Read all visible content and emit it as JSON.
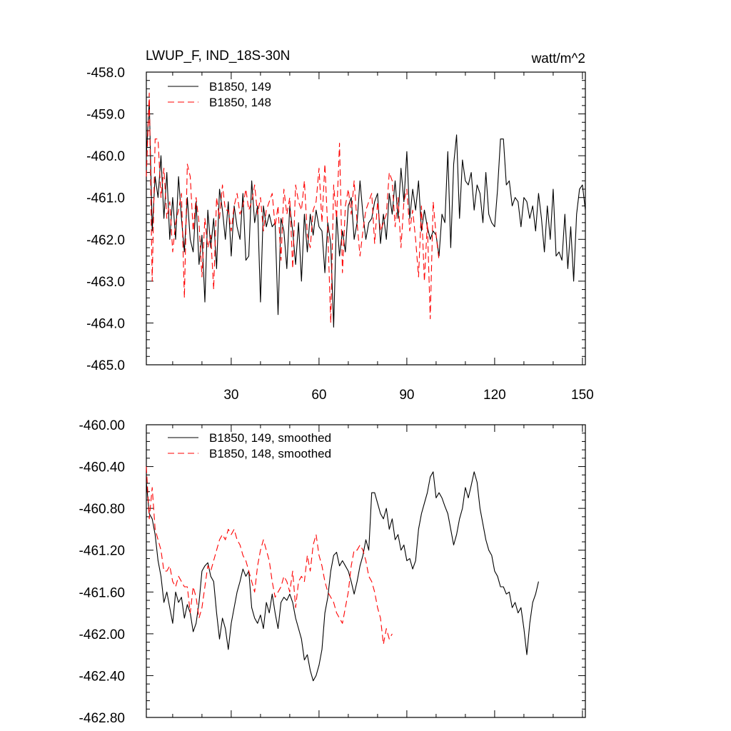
{
  "chart_data": [
    {
      "type": "line",
      "title": "LWUP_F, IND_18S-30N",
      "units": "watt/m^2",
      "xlim": [
        1,
        151
      ],
      "ylim": [
        -465.0,
        -458.0
      ],
      "ytick_labels": [
        "-458.0",
        "-459.0",
        "-460.0",
        "-461.0",
        "-462.0",
        "-463.0",
        "-464.0",
        "-465.0"
      ],
      "xtick_labels": [
        "30",
        "60",
        "90",
        "120",
        "150"
      ],
      "grid": false,
      "legend_position": "top-left",
      "series": [
        {
          "name": "B1850, 149",
          "color": "#000000",
          "dash": "solid",
          "x_start": 1,
          "values": [
            -460.0,
            -458.7,
            -461.8,
            -460.5,
            -461.0,
            -460.0,
            -461.5,
            -460.4,
            -462.0,
            -461.0,
            -462.0,
            -460.5,
            -461.5,
            -462.3,
            -461.0,
            -462.0,
            -462.3,
            -461.1,
            -462.6,
            -461.9,
            -463.5,
            -461.3,
            -462.2,
            -461.5,
            -462.7,
            -460.8,
            -461.3,
            -462.0,
            -461.1,
            -462.4,
            -461.2,
            -461.7,
            -462.0,
            -460.9,
            -462.5,
            -462.4,
            -460.6,
            -461.6,
            -461.2,
            -463.5,
            -461.2,
            -461.7,
            -461.4,
            -461.7,
            -461.6,
            -463.8,
            -461.5,
            -461.8,
            -462.7,
            -461.2,
            -461.8,
            -462.6,
            -461.6,
            -463.0,
            -461.4,
            -462.3,
            -461.4,
            -461.9,
            -461.3,
            -461.7,
            -461.8,
            -462.8,
            -461.6,
            -462.1,
            -464.1,
            -461.4,
            -462.4,
            -461.8,
            -462.3,
            -461.2,
            -461.0,
            -462.0,
            -461.6,
            -460.6,
            -461.4,
            -462.0,
            -461.6,
            -461.5,
            -461.1,
            -460.9,
            -462.1,
            -461.4,
            -462.0,
            -460.9,
            -461.4,
            -460.6,
            -461.5,
            -460.3,
            -461.1,
            -459.9,
            -461.5,
            -460.8,
            -461.3,
            -460.6,
            -461.8,
            -461.3,
            -461.7,
            -462.0,
            -461.8,
            -461.9,
            -462.4,
            -461.4,
            -461.6,
            -459.9,
            -462.2,
            -460.2,
            -459.5,
            -461.5,
            -460.1,
            -460.6,
            -460.7,
            -460.4,
            -461.3,
            -460.7,
            -460.9,
            -461.6,
            -460.4,
            -461.4,
            -461.6,
            -461.7,
            -460.8,
            -459.6,
            -459.6,
            -460.7,
            -460.6,
            -461.2,
            -461.0,
            -461.1,
            -461.7,
            -461.0,
            -461.1,
            -461.5,
            -461.2,
            -461.8,
            -460.9,
            -461.5,
            -462.3,
            -461.2,
            -462.0,
            -460.8,
            -462.4,
            -462.3,
            -462.5,
            -461.4,
            -462.7,
            -461.7,
            -463.0,
            -461.4,
            -460.8,
            -460.7,
            -461.3
          ]
        },
        {
          "name": "B1850, 148",
          "color": "#ff0000",
          "dash": "dashed",
          "x_start": 1,
          "values": [
            -460.5,
            -458.5,
            -463.0,
            -459.6,
            -459.6,
            -461.0,
            -460.3,
            -461.5,
            -461.1,
            -462.3,
            -461.6,
            -461.3,
            -460.9,
            -463.4,
            -460.2,
            -460.5,
            -461.8,
            -461.0,
            -461.6,
            -462.9,
            -461.5,
            -462.2,
            -461.9,
            -463.2,
            -461.0,
            -461.5,
            -460.7,
            -461.3,
            -461.3,
            -461.8,
            -461.2,
            -460.9,
            -461.4,
            -461.2,
            -460.8,
            -461.3,
            -461.1,
            -460.7,
            -461.4,
            -461.0,
            -461.8,
            -461.3,
            -461.1,
            -460.9,
            -461.7,
            -461.2,
            -462.5,
            -460.8,
            -461.4,
            -461.0,
            -462.7,
            -460.7,
            -461.1,
            -461.3,
            -460.6,
            -461.9,
            -462.2,
            -461.3,
            -461.1,
            -460.3,
            -461.6,
            -460.2,
            -461.8,
            -464.0,
            -460.7,
            -461.5,
            -459.7,
            -462.8,
            -461.2,
            -460.8,
            -461.4,
            -460.6,
            -461.6,
            -462.4,
            -461.8,
            -461.3,
            -461.1,
            -460.9,
            -462.1,
            -461.1,
            -461.8,
            -461.6,
            -461.4,
            -460.4,
            -460.6,
            -461.7,
            -461.0,
            -462.2,
            -461.1,
            -460.8,
            -461.8,
            -461.3,
            -462.0,
            -462.9,
            -461.2,
            -463.0,
            -461.6,
            -463.9,
            -461.1,
            -461.9,
            -462.5
          ]
        }
      ]
    },
    {
      "type": "line",
      "xlim": [
        1,
        151
      ],
      "ylim": [
        -462.8,
        -460.0
      ],
      "ytick_labels": [
        "-460.00",
        "-460.40",
        "-460.80",
        "-461.20",
        "-461.60",
        "-462.00",
        "-462.40",
        "-462.80"
      ],
      "grid": false,
      "legend_position": "top-left",
      "series": [
        {
          "name": "B1850, 149, smoothed",
          "color": "#000000",
          "dash": "solid",
          "x_start": 1,
          "values": [
            -460.55,
            -460.85,
            -460.9,
            -461.05,
            -461.3,
            -461.45,
            -461.7,
            -461.6,
            -461.75,
            -461.9,
            -461.6,
            -461.7,
            -461.65,
            -461.85,
            -461.72,
            -461.8,
            -461.98,
            -461.9,
            -461.7,
            -461.4,
            -461.35,
            -461.32,
            -461.45,
            -461.5,
            -461.8,
            -462.05,
            -461.85,
            -461.95,
            -462.15,
            -461.9,
            -461.75,
            -461.6,
            -461.5,
            -461.38,
            -461.45,
            -461.4,
            -461.75,
            -461.85,
            -461.9,
            -461.82,
            -461.95,
            -461.7,
            -461.8,
            -461.62,
            -461.8,
            -461.95,
            -461.7,
            -461.65,
            -461.68,
            -461.62,
            -461.7,
            -461.85,
            -461.95,
            -462.05,
            -462.25,
            -462.2,
            -462.35,
            -462.45,
            -462.4,
            -462.3,
            -462.15,
            -461.8,
            -461.65,
            -461.4,
            -461.25,
            -461.22,
            -461.35,
            -461.3,
            -461.35,
            -461.4,
            -461.5,
            -461.62,
            -461.5,
            -461.35,
            -461.25,
            -461.1,
            -461.2,
            -460.65,
            -460.65,
            -460.75,
            -460.85,
            -460.9,
            -460.8,
            -461.0,
            -460.9,
            -461.1,
            -461.05,
            -461.2,
            -461.15,
            -461.3,
            -461.28,
            -461.38,
            -461.3,
            -461.0,
            -460.85,
            -460.75,
            -460.65,
            -460.5,
            -460.45,
            -460.7,
            -460.65,
            -460.7,
            -460.78,
            -460.85,
            -461.0,
            -461.15,
            -461.05,
            -460.9,
            -460.8,
            -460.6,
            -460.7,
            -460.58,
            -460.45,
            -460.55,
            -460.8,
            -460.95,
            -461.1,
            -461.2,
            -461.25,
            -461.4,
            -461.45,
            -461.55,
            -461.55,
            -461.62,
            -461.6,
            -461.75,
            -461.7,
            -461.8,
            -461.75,
            -461.95,
            -462.2,
            -461.9,
            -461.7,
            -461.62,
            -461.5
          ]
        },
        {
          "name": "B1850, 148, smoothed",
          "color": "#ff0000",
          "dash": "dashed",
          "x_start": 1,
          "values": [
            -460.4,
            -460.9,
            -460.6,
            -461.0,
            -461.1,
            -461.2,
            -461.4,
            -461.4,
            -461.35,
            -461.5,
            -461.55,
            -461.45,
            -461.5,
            -461.55,
            -461.55,
            -461.8,
            -461.55,
            -461.65,
            -461.85,
            -461.75,
            -461.55,
            -461.35,
            -461.4,
            -461.3,
            -461.2,
            -461.1,
            -461.05,
            -461.1,
            -461.0,
            -461.05,
            -461.0,
            -461.1,
            -461.15,
            -461.25,
            -461.3,
            -461.4,
            -461.5,
            -461.6,
            -461.35,
            -461.2,
            -461.1,
            -461.2,
            -461.3,
            -461.5,
            -461.65,
            -461.6,
            -461.55,
            -461.45,
            -461.5,
            -461.6,
            -461.4,
            -461.75,
            -461.5,
            -461.45,
            -461.5,
            -461.25,
            -461.4,
            -461.15,
            -461.05,
            -461.25,
            -461.35,
            -461.5,
            -461.6,
            -461.65,
            -461.7,
            -461.8,
            -461.85,
            -461.9,
            -461.75,
            -461.6,
            -461.35,
            -461.2,
            -461.2,
            -461.15,
            -461.2,
            -461.3,
            -461.45,
            -461.5,
            -461.6,
            -461.75,
            -461.85,
            -462.1,
            -461.95,
            -462.05,
            -462.0
          ]
        }
      ]
    }
  ]
}
